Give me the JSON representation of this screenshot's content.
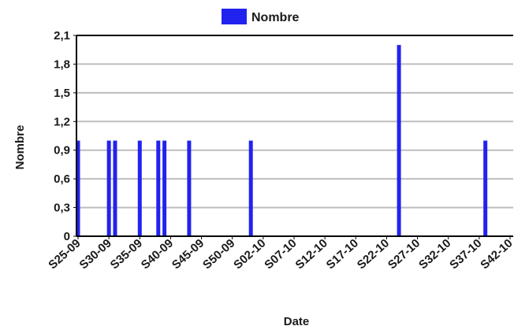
{
  "chart_data": {
    "type": "bar",
    "title": "",
    "xlabel": "Date",
    "ylabel": "Nombre",
    "ylim": [
      0,
      2.1
    ],
    "yticks": [
      "0",
      "0,3",
      "0,6",
      "0,9",
      "1,2",
      "1,5",
      "1,8",
      "2,1"
    ],
    "xtick_labels": [
      "S25-09",
      "S30-09",
      "S35-09",
      "S40-09",
      "S45-09",
      "S50-09",
      "S02-10",
      "S07-10",
      "S12-10",
      "S17-10",
      "S22-10",
      "S27-10",
      "S32-10",
      "S37-10",
      "S42-10"
    ],
    "x_start_week": "S25-09",
    "x_end_week": "S42-10",
    "grid": true,
    "legend_position": "top-center",
    "series": [
      {
        "name": "Nombre",
        "color": "#2222ee",
        "points": [
          {
            "week": "S25-09",
            "value": 1
          },
          {
            "week": "S30-09",
            "value": 1
          },
          {
            "week": "S31-09",
            "value": 1
          },
          {
            "week": "S35-09",
            "value": 1
          },
          {
            "week": "S38-09",
            "value": 1
          },
          {
            "week": "S39-09",
            "value": 1
          },
          {
            "week": "S43-09",
            "value": 1
          },
          {
            "week": "S53-09",
            "value": 1
          },
          {
            "week": "S24-10",
            "value": 2
          },
          {
            "week": "S38-10",
            "value": 1
          }
        ]
      }
    ]
  }
}
